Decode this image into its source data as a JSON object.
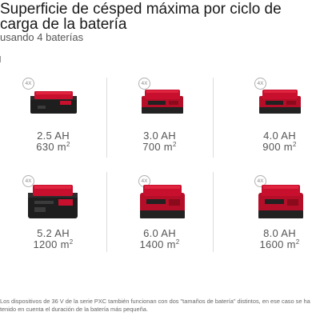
{
  "header": {
    "title": "Superficie de césped máxima por ciclo de carga de la batería",
    "subtitle": "usando 4 baterías"
  },
  "batteries": [
    {
      "badge": "4X",
      "capacity": "2.5 AH",
      "area_value": "630 m",
      "area_unit_sup": "2",
      "icon": "battery-pack-icon",
      "style": "slim"
    },
    {
      "badge": "4X",
      "capacity": "3.0 AH",
      "area_value": "700 m",
      "area_unit_sup": "2",
      "icon": "battery-pack-icon",
      "style": "medium-red"
    },
    {
      "badge": "4X",
      "capacity": "4.0 AH",
      "area_value": "900 m",
      "area_unit_sup": "2",
      "icon": "battery-pack-icon",
      "style": "medium-red"
    },
    {
      "badge": "4X",
      "capacity": "5.2 AH",
      "area_value": "1200 m",
      "area_unit_sup": "2",
      "icon": "battery-pack-icon",
      "style": "tall-black"
    },
    {
      "badge": "4X",
      "capacity": "6.0 AH",
      "area_value": "1400 m",
      "area_unit_sup": "2",
      "icon": "battery-pack-icon",
      "style": "tall-red"
    },
    {
      "badge": "4X",
      "capacity": "8.0 AH",
      "area_value": "1600 m",
      "area_unit_sup": "2",
      "icon": "battery-pack-icon",
      "style": "tall-red"
    }
  ],
  "footnote": "Los dispositivos de 36 V de la serie PXC también funcionan con dos \"tamaños de batería\" distintos, en ese caso se ha tenido en cuenta el duración de la batería más pequeña.",
  "colors": {
    "brand_red": "#c8102e",
    "dark_red": "#8b0a1c",
    "battery_black": "#1e1e1e",
    "divider": "#dddddd",
    "text_gray": "#555555"
  }
}
